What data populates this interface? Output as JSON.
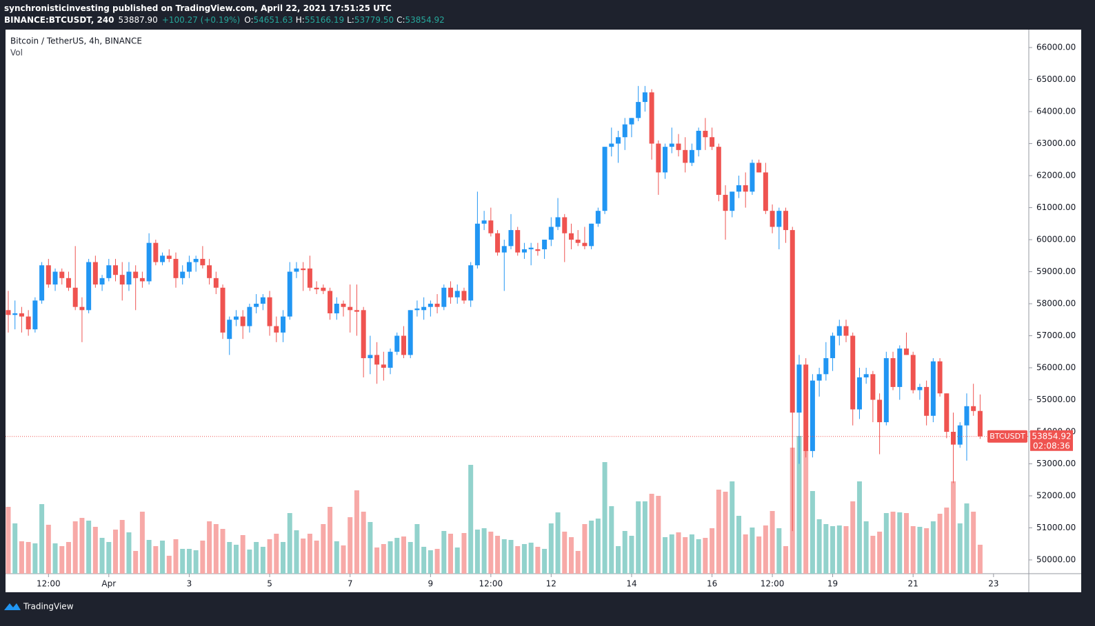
{
  "header": {
    "line1": "synchronisticinvesting published on TradingView.com, April 22, 2021 17:51:25 UTC",
    "symbol": "BINANCE:BTCUSDT, 240",
    "last": "53887.90",
    "change": "+100.27 (+0.19%)",
    "o_label": "O:",
    "open": "54651.63",
    "h_label": "H:",
    "high": "55166.19",
    "l_label": "L:",
    "low": "53779.50",
    "c_label": "C:",
    "close": "53854.92"
  },
  "chart_data": {
    "type": "candlestick",
    "title": "Bitcoin / TetherUS, 4h, BINANCE",
    "volume_label": "Vol",
    "symbol_tag": "BTCUSDT",
    "countdown": "02:08:36",
    "up_color": "#2196f3",
    "down_color": "#ef5350",
    "volume_up_color": "#92d2cc",
    "volume_down_color": "#f7a9a7",
    "ylim": [
      49570,
      66560
    ],
    "yticks": [
      {
        "value": 50000,
        "label": "50000.00"
      },
      {
        "value": 51000,
        "label": "51000.00"
      },
      {
        "value": 52000,
        "label": "52000.00"
      },
      {
        "value": 53000,
        "label": "53000.00"
      },
      {
        "value": 54000,
        "label": "54000.00"
      },
      {
        "value": 55000,
        "label": "55000.00"
      },
      {
        "value": 56000,
        "label": "56000.00"
      },
      {
        "value": 57000,
        "label": "57000.00"
      },
      {
        "value": 58000,
        "label": "58000.00"
      },
      {
        "value": 59000,
        "label": "59000.00"
      },
      {
        "value": 60000,
        "label": "60000.00"
      },
      {
        "value": 61000,
        "label": "61000.00"
      },
      {
        "value": 62000,
        "label": "62000.00"
      },
      {
        "value": 63000,
        "label": "63000.00"
      },
      {
        "value": 64000,
        "label": "64000.00"
      },
      {
        "value": 65000,
        "label": "65000.00"
      },
      {
        "value": 66000,
        "label": "66000.00"
      }
    ],
    "xticks": [
      {
        "value": 6,
        "label": "12:00"
      },
      {
        "value": 15,
        "label": "Apr"
      },
      {
        "value": 27,
        "label": "3"
      },
      {
        "value": 39,
        "label": "5"
      },
      {
        "value": 51,
        "label": "7"
      },
      {
        "value": 63,
        "label": "9"
      },
      {
        "value": 72,
        "label": "12:00"
      },
      {
        "value": 81,
        "label": "12"
      },
      {
        "value": 93,
        "label": "14"
      },
      {
        "value": 105,
        "label": "16"
      },
      {
        "value": 114,
        "label": "12:00"
      },
      {
        "value": 123,
        "label": "19"
      },
      {
        "value": 135,
        "label": "21"
      },
      {
        "value": 147,
        "label": "23"
      }
    ],
    "candles": [
      [
        57800,
        58400,
        57100,
        57650
      ],
      [
        57650,
        58100,
        57200,
        57700
      ],
      [
        57700,
        57900,
        57100,
        57600
      ],
      [
        57600,
        57800,
        57000,
        57200
      ],
      [
        57200,
        58200,
        57100,
        58100
      ],
      [
        58100,
        59300,
        58000,
        59200
      ],
      [
        59200,
        59400,
        58500,
        58600
      ],
      [
        58600,
        59100,
        58400,
        59000
      ],
      [
        59000,
        59100,
        58600,
        58800
      ],
      [
        58800,
        59000,
        58400,
        58500
      ],
      [
        58500,
        59800,
        57800,
        57900
      ],
      [
        57900,
        58200,
        56800,
        57800
      ],
      [
        57800,
        59400,
        57700,
        59300
      ],
      [
        59300,
        59500,
        58500,
        58600
      ],
      [
        58600,
        58900,
        58400,
        58800
      ],
      [
        58800,
        59400,
        58700,
        59200
      ],
      [
        59200,
        59400,
        58700,
        58900
      ],
      [
        58900,
        59300,
        58100,
        58600
      ],
      [
        58600,
        59300,
        58400,
        59000
      ],
      [
        59000,
        59200,
        57800,
        58800
      ],
      [
        58800,
        59000,
        58500,
        58700
      ],
      [
        58700,
        60200,
        58600,
        59900
      ],
      [
        59900,
        60000,
        59200,
        59300
      ],
      [
        59300,
        59600,
        59200,
        59500
      ],
      [
        59500,
        59700,
        59300,
        59400
      ],
      [
        59400,
        59600,
        58500,
        58800
      ],
      [
        58800,
        59200,
        58600,
        59000
      ],
      [
        59000,
        59500,
        58800,
        59300
      ],
      [
        59300,
        59500,
        59000,
        59400
      ],
      [
        59400,
        59800,
        59100,
        59200
      ],
      [
        59200,
        59400,
        58600,
        58800
      ],
      [
        58800,
        59000,
        58300,
        58500
      ],
      [
        58500,
        58600,
        56900,
        57100
      ],
      [
        56900,
        57600,
        56400,
        57500
      ],
      [
        57500,
        57800,
        57300,
        57600
      ],
      [
        57600,
        57800,
        56900,
        57300
      ],
      [
        57300,
        58000,
        57100,
        57900
      ],
      [
        57900,
        58300,
        57700,
        58000
      ],
      [
        58000,
        58300,
        57800,
        58200
      ],
      [
        58200,
        58400,
        57000,
        57300
      ],
      [
        57300,
        57600,
        56800,
        57100
      ],
      [
        57100,
        57800,
        56800,
        57600
      ],
      [
        57600,
        59300,
        57500,
        59000
      ],
      [
        59000,
        59300,
        58800,
        59100
      ],
      [
        59100,
        59300,
        58400,
        59050
      ],
      [
        59100,
        59500,
        58400,
        58500
      ],
      [
        58500,
        58700,
        58300,
        58450
      ],
      [
        58500,
        58600,
        58300,
        58400
      ],
      [
        58400,
        58500,
        57500,
        57700
      ],
      [
        57700,
        58200,
        57500,
        58000
      ],
      [
        58000,
        58100,
        57600,
        57900
      ],
      [
        57900,
        58600,
        57100,
        57800
      ],
      [
        57800,
        58600,
        57000,
        57750
      ],
      [
        57800,
        57900,
        55700,
        56300
      ],
      [
        56300,
        57000,
        55800,
        56400
      ],
      [
        56400,
        56800,
        55500,
        56100
      ],
      [
        56100,
        56500,
        55600,
        56000
      ],
      [
        56000,
        56600,
        55800,
        56500
      ],
      [
        56500,
        57100,
        56400,
        57000
      ],
      [
        57000,
        57300,
        56300,
        56400
      ],
      [
        56400,
        57800,
        56300,
        57800
      ],
      [
        57800,
        58100,
        57600,
        57850
      ],
      [
        57800,
        58200,
        57500,
        57900
      ],
      [
        57900,
        58100,
        57600,
        58000
      ],
      [
        58000,
        58300,
        57700,
        57900
      ],
      [
        57900,
        58600,
        57800,
        58500
      ],
      [
        58500,
        58700,
        58000,
        58200
      ],
      [
        58200,
        58600,
        58000,
        58400
      ],
      [
        58400,
        58500,
        58000,
        58100
      ],
      [
        58100,
        59300,
        57900,
        59200
      ],
      [
        59200,
        61500,
        59100,
        60500
      ],
      [
        60500,
        60900,
        60300,
        60600
      ],
      [
        60600,
        61000,
        60100,
        60200
      ],
      [
        60200,
        60300,
        59500,
        59600
      ],
      [
        59600,
        60000,
        58400,
        59800
      ],
      [
        59800,
        60800,
        59700,
        60300
      ],
      [
        60300,
        60400,
        59500,
        59600
      ],
      [
        59600,
        59900,
        59400,
        59700
      ],
      [
        59700,
        59900,
        59200,
        59750
      ],
      [
        59700,
        59900,
        59500,
        59650
      ],
      [
        59700,
        60000,
        59400,
        60000
      ],
      [
        60000,
        60700,
        59800,
        60400
      ],
      [
        60400,
        61300,
        60300,
        60700
      ],
      [
        60700,
        60800,
        59300,
        60200
      ],
      [
        60200,
        60500,
        59700,
        60000
      ],
      [
        60000,
        60300,
        59800,
        59900
      ],
      [
        59900,
        60400,
        59700,
        59800
      ],
      [
        59800,
        60500,
        59700,
        60500
      ],
      [
        60500,
        61000,
        60400,
        60900
      ],
      [
        60900,
        62900,
        60800,
        62900
      ],
      [
        62900,
        63500,
        62600,
        63000
      ],
      [
        63000,
        63400,
        62400,
        63200
      ],
      [
        63200,
        63800,
        62800,
        63600
      ],
      [
        63600,
        63800,
        63200,
        63800
      ],
      [
        63800,
        64800,
        63700,
        64300
      ],
      [
        64300,
        64800,
        64000,
        64600
      ],
      [
        64600,
        64700,
        62500,
        63000
      ],
      [
        63000,
        63100,
        61400,
        62100
      ],
      [
        62100,
        63000,
        61900,
        62900
      ],
      [
        62900,
        63500,
        62700,
        63000
      ],
      [
        63000,
        63300,
        62600,
        62800
      ],
      [
        62800,
        63200,
        62100,
        62400
      ],
      [
        62400,
        63000,
        62300,
        62800
      ],
      [
        62800,
        63500,
        62600,
        63400
      ],
      [
        63400,
        63800,
        62800,
        63200
      ],
      [
        63200,
        63500,
        62800,
        62900
      ],
      [
        62900,
        63000,
        61200,
        61400
      ],
      [
        61400,
        61700,
        60000,
        60900
      ],
      [
        60900,
        61500,
        60700,
        61500
      ],
      [
        61500,
        62000,
        61300,
        61700
      ],
      [
        61700,
        62100,
        61000,
        61500
      ],
      [
        61500,
        62500,
        61400,
        62400
      ],
      [
        62400,
        62500,
        62100,
        62100
      ],
      [
        62100,
        62400,
        60800,
        60900
      ],
      [
        60900,
        61100,
        60200,
        60400
      ],
      [
        60400,
        61000,
        59700,
        60900
      ],
      [
        60900,
        61000,
        59900,
        60300
      ],
      [
        60300,
        60400,
        50900,
        54600
      ],
      [
        54600,
        56400,
        53000,
        56100
      ],
      [
        56100,
        56300,
        53200,
        53400
      ],
      [
        53400,
        55800,
        53200,
        55600
      ],
      [
        55600,
        56000,
        55100,
        55800
      ],
      [
        55800,
        56800,
        55600,
        56300
      ],
      [
        56300,
        57100,
        55900,
        57000
      ],
      [
        57000,
        57500,
        56700,
        57300
      ],
      [
        57300,
        57500,
        56800,
        57000
      ],
      [
        57000,
        57100,
        54200,
        54700
      ],
      [
        54700,
        56000,
        54400,
        55700
      ],
      [
        55700,
        56000,
        55500,
        55800
      ],
      [
        55800,
        55900,
        54300,
        55000
      ],
      [
        55000,
        55200,
        53300,
        54300
      ],
      [
        54300,
        56500,
        54200,
        56300
      ],
      [
        56300,
        56500,
        55300,
        55400
      ],
      [
        55400,
        56700,
        55000,
        56600
      ],
      [
        56600,
        57100,
        56400,
        56400
      ],
      [
        56400,
        56500,
        55200,
        55300
      ],
      [
        55300,
        55500,
        55000,
        55400
      ],
      [
        55400,
        55600,
        54200,
        54500
      ],
      [
        54500,
        56300,
        54300,
        56200
      ],
      [
        56200,
        56300,
        55100,
        55200
      ],
      [
        55200,
        55200,
        53800,
        54000
      ],
      [
        54000,
        54600,
        52400,
        53600
      ],
      [
        53600,
        54300,
        53500,
        54200
      ],
      [
        54200,
        55200,
        53100,
        54800
      ],
      [
        54800,
        55500,
        54500,
        54650
      ],
      [
        54651.63,
        55166.19,
        53779.5,
        53854.92
      ]
    ],
    "volume": [
      97,
      73,
      47,
      46,
      44,
      101,
      71,
      44,
      40,
      46,
      76,
      81,
      77,
      68,
      52,
      46,
      64,
      78,
      60,
      33,
      90,
      49,
      40,
      48,
      26,
      50,
      36,
      36,
      34,
      48,
      76,
      72,
      65,
      46,
      42,
      56,
      35,
      46,
      39,
      50,
      58,
      46,
      88,
      63,
      51,
      58,
      48,
      72,
      97,
      47,
      41,
      82,
      121,
      90,
      75,
      38,
      43,
      47,
      52,
      54,
      46,
      72,
      39,
      34,
      36,
      62,
      58,
      38,
      59,
      158,
      64,
      66,
      61,
      55,
      50,
      49,
      40,
      43,
      45,
      39,
      36,
      73,
      89,
      61,
      53,
      33,
      72,
      77,
      80,
      162,
      98,
      40,
      62,
      55,
      105,
      105,
      116,
      113,
      53,
      57,
      60,
      53,
      57,
      50,
      52,
      66,
      122,
      119,
      134,
      84,
      57,
      67,
      54,
      70,
      91,
      66,
      40,
      183,
      200,
      180,
      120,
      79,
      72,
      69,
      70,
      69,
      105,
      134,
      76,
      55,
      61,
      88,
      90,
      89,
      88,
      69,
      68,
      66,
      76,
      87,
      96,
      134,
      73,
      102,
      90,
      42
    ]
  }
}
